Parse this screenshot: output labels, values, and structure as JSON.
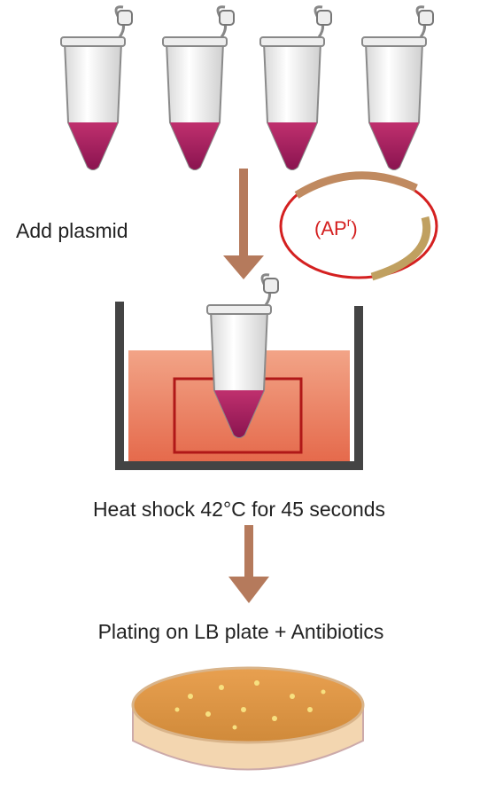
{
  "steps": [
    {
      "label": "Add plasmid"
    },
    {
      "label": "Heat shock 42°C for 45 seconds"
    },
    {
      "label": "Plating on LB plate + Antibiotics"
    }
  ],
  "plasmid": {
    "label": "(AP",
    "superscript": "r",
    "closing": ")"
  }
}
